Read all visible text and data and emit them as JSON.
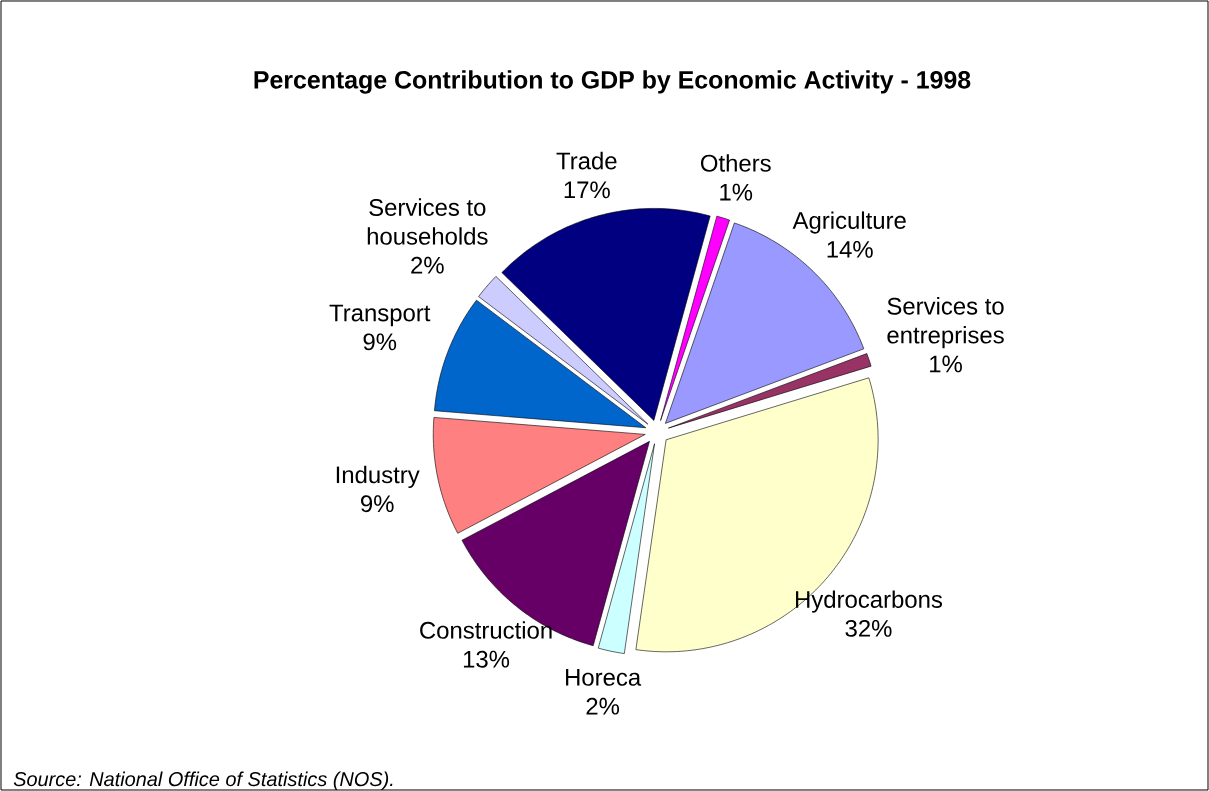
{
  "chart_data": {
    "type": "pie",
    "title": "Percentage Contribution to GDP by Economic Activity -  1998",
    "categories": [
      "Agriculture",
      "Services to entreprises",
      "Hydrocarbons",
      "Horeca",
      "Construction",
      "Industry",
      "Transport",
      "Services to households",
      "Trade",
      "Others"
    ],
    "values": [
      14,
      1,
      32,
      2,
      13,
      9,
      9,
      2,
      17,
      1
    ],
    "value_labels": [
      "14%",
      "1%",
      "32%",
      "2%",
      "13%",
      "9%",
      "9%",
      "2%",
      "17%",
      "1%"
    ],
    "colors": [
      "#9999ff",
      "#993366",
      "#ffffcc",
      "#ccffff",
      "#660066",
      "#ff8080",
      "#0066cc",
      "#ccccff",
      "#000080",
      "#ff00ff"
    ],
    "annotations": [
      "Source: National Office of Statistics (NOS)."
    ]
  }
}
